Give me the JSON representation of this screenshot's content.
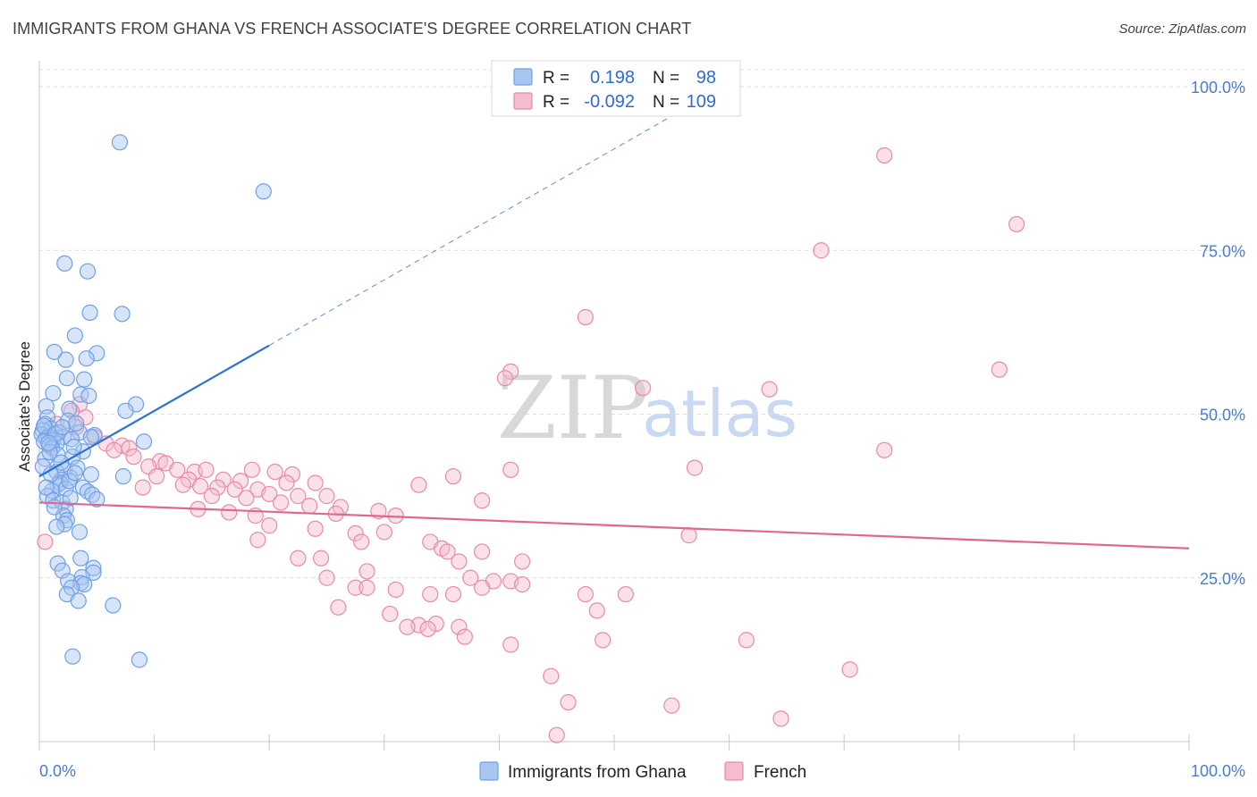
{
  "header": {
    "title": "IMMIGRANTS FROM GHANA VS FRENCH ASSOCIATE'S DEGREE CORRELATION CHART",
    "source": "Source: ZipAtlas.com"
  },
  "colors": {
    "blue": "#6fa0e8",
    "blue_fill": "#a9c6f0",
    "blue_line": "#2f72d6",
    "pink": "#e88aa8",
    "pink_fill": "#f5bccd",
    "pink_line": "#e06890",
    "grid": "#dcdcdc",
    "axis_text": "#4a7bd0"
  },
  "watermark": {
    "zip": "ZIP",
    "atlas": "atlas"
  },
  "chart_data": {
    "type": "scatter",
    "title": "IMMIGRANTS FROM GHANA VS FRENCH ASSOCIATE'S DEGREE CORRELATION CHART",
    "xlabel": "",
    "ylabel": "Associate's Degree",
    "xlim": [
      0,
      100
    ],
    "ylim": [
      0,
      100
    ],
    "x_tick_labels": [
      "0.0%",
      "100.0%"
    ],
    "y_ticks": [
      25,
      50,
      75,
      100
    ],
    "y_tick_labels": [
      "25.0%",
      "50.0%",
      "75.0%",
      "100.0%"
    ],
    "grid": true,
    "legend_position": "top-center",
    "legend": [
      {
        "name": "Immigrants from Ghana",
        "r_label": "R =",
        "r_value": "0.198",
        "n_label": "N =",
        "n_value": "98"
      },
      {
        "name": "French",
        "r_label": "R =",
        "r_value": "-0.092",
        "n_label": "N =",
        "n_value": "109"
      }
    ],
    "series": [
      {
        "name": "Immigrants from Ghana",
        "trend": {
          "x0": 0,
          "y0": 40.5,
          "x1": 20,
          "y1": 60.5,
          "dashed_to_x": 55,
          "dashed_to_y": 95.5
        },
        "points": [
          [
            7,
            91.5
          ],
          [
            19.5,
            84
          ],
          [
            2.2,
            73
          ],
          [
            4.2,
            71.8
          ],
          [
            4.4,
            65.5
          ],
          [
            7.2,
            65.3
          ],
          [
            3.1,
            62
          ],
          [
            1.3,
            59.5
          ],
          [
            5,
            59.3
          ],
          [
            4.1,
            58.5
          ],
          [
            2.3,
            58.3
          ],
          [
            2.4,
            55.5
          ],
          [
            3.9,
            55.3
          ],
          [
            1.2,
            53.2
          ],
          [
            3.6,
            53
          ],
          [
            4.3,
            52.8
          ],
          [
            8.4,
            51.5
          ],
          [
            0.6,
            51.2
          ],
          [
            2.6,
            50.8
          ],
          [
            7.5,
            50.5
          ],
          [
            0.7,
            49.5
          ],
          [
            2.5,
            49
          ],
          [
            0.5,
            48.5
          ],
          [
            1,
            47.8
          ],
          [
            0.3,
            47.5
          ],
          [
            1.7,
            47.2
          ],
          [
            0.2,
            46.9
          ],
          [
            0.8,
            46.6
          ],
          [
            0.6,
            46.3
          ],
          [
            1.2,
            46
          ],
          [
            3.5,
            47.2
          ],
          [
            4.8,
            46.8
          ],
          [
            2.1,
            46.5
          ],
          [
            0.4,
            45.8
          ],
          [
            1.5,
            45.5
          ],
          [
            0.9,
            45.2
          ],
          [
            9.1,
            45.8
          ],
          [
            1.1,
            44.8
          ],
          [
            3.8,
            44.3
          ],
          [
            1.6,
            43.8
          ],
          [
            2.9,
            43.5
          ],
          [
            0.5,
            43.2
          ],
          [
            4.5,
            46.5
          ],
          [
            2.2,
            41.5
          ],
          [
            1.5,
            41.2
          ],
          [
            3.3,
            41.8
          ],
          [
            4.5,
            40.8
          ],
          [
            7.3,
            40.5
          ],
          [
            2.7,
            40.3
          ],
          [
            1.9,
            40
          ],
          [
            1.8,
            39.5
          ],
          [
            1.6,
            39.2
          ],
          [
            3.8,
            38.8
          ],
          [
            2.3,
            38.6
          ],
          [
            1.1,
            38.3
          ],
          [
            4.2,
            38.2
          ],
          [
            4.6,
            37.7
          ],
          [
            0.7,
            37.5
          ],
          [
            5,
            37
          ],
          [
            1.2,
            36.8
          ],
          [
            2,
            36.5
          ],
          [
            2.3,
            35.5
          ],
          [
            2.1,
            34.5
          ],
          [
            2.4,
            33.8
          ],
          [
            2.2,
            33.2
          ],
          [
            3.5,
            32
          ],
          [
            1.5,
            32.8
          ],
          [
            3.6,
            28
          ],
          [
            1.6,
            27.2
          ],
          [
            4.7,
            26.5
          ],
          [
            2.0,
            26.1
          ],
          [
            4.7,
            25.8
          ],
          [
            3.7,
            25.1
          ],
          [
            2.5,
            24.5
          ],
          [
            3.6,
            24.2
          ],
          [
            3.9,
            24
          ],
          [
            2.8,
            23.5
          ],
          [
            2.4,
            22.5
          ],
          [
            3.4,
            21.5
          ],
          [
            6.4,
            20.8
          ],
          [
            2.9,
            13
          ],
          [
            8.7,
            12.5
          ],
          [
            0.4,
            48.2
          ],
          [
            1.4,
            47.0
          ],
          [
            2.8,
            46.2
          ],
          [
            0.9,
            44.2
          ],
          [
            3.2,
            48.6
          ],
          [
            1.9,
            42.6
          ],
          [
            2.6,
            39.8
          ],
          [
            0.3,
            42.0
          ],
          [
            1.0,
            40.8
          ],
          [
            3.0,
            45.0
          ],
          [
            2.0,
            48.0
          ],
          [
            0.6,
            38.8
          ],
          [
            1.3,
            35.8
          ],
          [
            3.1,
            41.0
          ],
          [
            2.7,
            37.2
          ],
          [
            0.8,
            45.6
          ]
        ]
      },
      {
        "name": "French",
        "trend": {
          "x0": 0,
          "y0": 36.5,
          "x1": 100,
          "y1": 29.5
        },
        "points": [
          [
            73.5,
            89.5
          ],
          [
            85,
            79
          ],
          [
            68,
            75
          ],
          [
            47.5,
            64.8
          ],
          [
            41,
            56.5
          ],
          [
            40.5,
            55.5
          ],
          [
            83.5,
            56.8
          ],
          [
            52.5,
            54
          ],
          [
            63.5,
            53.8
          ],
          [
            3.5,
            51.5
          ],
          [
            2.8,
            50.5
          ],
          [
            4,
            49.5
          ],
          [
            1.5,
            48.5
          ],
          [
            3.2,
            48
          ],
          [
            4.8,
            46.5
          ],
          [
            5.8,
            45.5
          ],
          [
            7.2,
            45.2
          ],
          [
            7.8,
            44.8
          ],
          [
            6.5,
            44.5
          ],
          [
            8.2,
            43.5
          ],
          [
            10.5,
            42.8
          ],
          [
            11,
            42.5
          ],
          [
            9.5,
            42
          ],
          [
            12,
            41.5
          ],
          [
            13.5,
            41.2
          ],
          [
            14.5,
            41.5
          ],
          [
            18.5,
            41.5
          ],
          [
            20.5,
            41.2
          ],
          [
            22,
            40.8
          ],
          [
            41,
            41.5
          ],
          [
            57,
            41.8
          ],
          [
            73.5,
            44.5
          ],
          [
            10.2,
            40.5
          ],
          [
            13,
            40
          ],
          [
            16,
            40
          ],
          [
            17.5,
            39.8
          ],
          [
            21.5,
            39.5
          ],
          [
            24,
            39.5
          ],
          [
            33,
            39.2
          ],
          [
            36,
            40.5
          ],
          [
            12.5,
            39.2
          ],
          [
            14,
            39
          ],
          [
            15.5,
            38.8
          ],
          [
            17,
            38.5
          ],
          [
            19,
            38.5
          ],
          [
            20,
            37.8
          ],
          [
            22.5,
            37.5
          ],
          [
            25,
            37.5
          ],
          [
            38.5,
            36.8
          ],
          [
            9,
            38.8
          ],
          [
            15,
            37.5
          ],
          [
            18,
            37.2
          ],
          [
            21,
            36.5
          ],
          [
            23.5,
            36
          ],
          [
            13.8,
            35.5
          ],
          [
            16.5,
            35
          ],
          [
            18.8,
            34.5
          ],
          [
            26.2,
            35.8
          ],
          [
            29.5,
            35.2
          ],
          [
            31,
            34.5
          ],
          [
            25.8,
            34.8
          ],
          [
            20,
            33
          ],
          [
            24,
            32.5
          ],
          [
            27.5,
            31.8
          ],
          [
            30,
            32
          ],
          [
            56.5,
            31.5
          ],
          [
            19,
            30.8
          ],
          [
            28,
            30.5
          ],
          [
            34,
            30.5
          ],
          [
            35,
            29.5
          ],
          [
            35.5,
            29
          ],
          [
            38.5,
            29
          ],
          [
            22.5,
            28
          ],
          [
            24.5,
            28
          ],
          [
            36.5,
            27.5
          ],
          [
            42,
            27.5
          ],
          [
            28.5,
            26
          ],
          [
            37.5,
            25
          ],
          [
            25,
            25
          ],
          [
            39.5,
            24.5
          ],
          [
            41,
            24.5
          ],
          [
            38.5,
            23.5
          ],
          [
            42,
            24
          ],
          [
            27.5,
            23.5
          ],
          [
            28.5,
            23.5
          ],
          [
            31,
            23.2
          ],
          [
            34,
            22.5
          ],
          [
            36,
            22.5
          ],
          [
            47.5,
            22.5
          ],
          [
            51,
            22.5
          ],
          [
            48.5,
            20
          ],
          [
            30.5,
            19.5
          ],
          [
            26,
            20.5
          ],
          [
            33,
            17.8
          ],
          [
            32,
            17.5
          ],
          [
            34.5,
            18
          ],
          [
            36.5,
            17.5
          ],
          [
            37,
            16
          ],
          [
            49,
            15.5
          ],
          [
            61.5,
            15.5
          ],
          [
            41,
            14.8
          ],
          [
            44.5,
            10
          ],
          [
            70.5,
            11
          ],
          [
            46,
            6
          ],
          [
            55,
            5.5
          ],
          [
            64.5,
            3.5
          ],
          [
            45,
            1
          ],
          [
            0.5,
            30.5
          ],
          [
            33.8,
            17.2
          ]
        ]
      }
    ]
  }
}
